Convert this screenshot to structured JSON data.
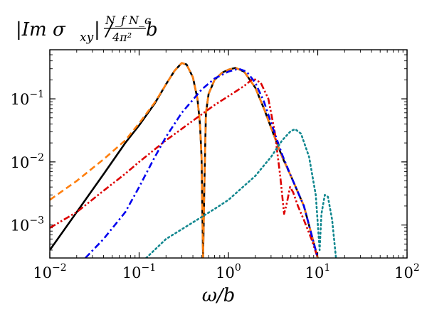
{
  "chart_data": {
    "type": "line",
    "title": "",
    "ylabel": {
      "prefix": "|Im σ",
      "subscript": "xy",
      "middle": "| / ",
      "frac_num": "N_f N_c",
      "frac_den": "4π²",
      "suffix": " b"
    },
    "xlabel": "ω/b",
    "x_scale": "log",
    "y_scale": "log",
    "xlim": [
      0.01,
      100
    ],
    "ylim": [
      0.0003,
      0.6
    ],
    "x_ticks": [
      {
        "value": 0.01,
        "base": "10",
        "exp": "−2"
      },
      {
        "value": 0.1,
        "base": "10",
        "exp": "−1"
      },
      {
        "value": 1,
        "base": "10",
        "exp": "0"
      },
      {
        "value": 10,
        "base": "10",
        "exp": "1"
      },
      {
        "value": 100,
        "base": "10",
        "exp": "2"
      }
    ],
    "y_ticks": [
      {
        "value": 0.001,
        "base": "10",
        "exp": "−3"
      },
      {
        "value": 0.01,
        "base": "10",
        "exp": "−2"
      },
      {
        "value": 0.1,
        "base": "10",
        "exp": "−1"
      }
    ],
    "series": [
      {
        "color": "#000000",
        "dash": "solid",
        "points": [
          [
            0.01,
            0.0004
          ],
          [
            0.02,
            0.0016
          ],
          [
            0.04,
            0.0064
          ],
          [
            0.07,
            0.02
          ],
          [
            0.1,
            0.038
          ],
          [
            0.15,
            0.085
          ],
          [
            0.2,
            0.17
          ],
          [
            0.25,
            0.28
          ],
          [
            0.3,
            0.37
          ],
          [
            0.34,
            0.35
          ],
          [
            0.4,
            0.22
          ],
          [
            0.45,
            0.1
          ],
          [
            0.48,
            0.04
          ],
          [
            0.5,
            0.012
          ],
          [
            0.52,
            0.0003
          ],
          [
            0.54,
            0.006
          ],
          [
            0.56,
            0.06
          ],
          [
            0.6,
            0.12
          ],
          [
            0.7,
            0.2
          ],
          [
            0.85,
            0.26
          ],
          [
            1.0,
            0.29
          ],
          [
            1.2,
            0.31
          ],
          [
            1.5,
            0.27
          ],
          [
            2.0,
            0.15
          ],
          [
            2.5,
            0.07
          ],
          [
            3.0,
            0.035
          ],
          [
            4.0,
            0.012
          ],
          [
            5.0,
            0.006
          ],
          [
            7.0,
            0.002
          ],
          [
            10.0,
            0.0003
          ]
        ]
      },
      {
        "color": "#ff7f0e",
        "dash": "dashed",
        "points": [
          [
            0.01,
            0.0025
          ],
          [
            0.02,
            0.005
          ],
          [
            0.04,
            0.011
          ],
          [
            0.07,
            0.022
          ],
          [
            0.1,
            0.041
          ],
          [
            0.15,
            0.088
          ],
          [
            0.2,
            0.17
          ],
          [
            0.25,
            0.28
          ],
          [
            0.3,
            0.37
          ],
          [
            0.34,
            0.35
          ],
          [
            0.4,
            0.22
          ],
          [
            0.45,
            0.1
          ],
          [
            0.48,
            0.04
          ],
          [
            0.5,
            0.012
          ],
          [
            0.52,
            0.0003
          ],
          [
            0.54,
            0.006
          ],
          [
            0.56,
            0.06
          ],
          [
            0.6,
            0.12
          ],
          [
            0.7,
            0.2
          ],
          [
            0.85,
            0.26
          ],
          [
            1.0,
            0.29
          ],
          [
            1.2,
            0.31
          ],
          [
            1.5,
            0.27
          ],
          [
            2.0,
            0.15
          ],
          [
            2.5,
            0.07
          ],
          [
            3.0,
            0.035
          ],
          [
            4.0,
            0.012
          ],
          [
            5.0,
            0.006
          ],
          [
            7.0,
            0.002
          ],
          [
            10.0,
            0.0003
          ]
        ]
      },
      {
        "color": "#dd0000",
        "dash": "dash-dot-dot",
        "points": [
          [
            0.01,
            0.0009
          ],
          [
            0.02,
            0.0016
          ],
          [
            0.04,
            0.0035
          ],
          [
            0.07,
            0.0065
          ],
          [
            0.1,
            0.01
          ],
          [
            0.2,
            0.022
          ],
          [
            0.4,
            0.045
          ],
          [
            0.7,
            0.08
          ],
          [
            1.0,
            0.11
          ],
          [
            1.5,
            0.16
          ],
          [
            1.9,
            0.21
          ],
          [
            2.3,
            0.18
          ],
          [
            2.8,
            0.1
          ],
          [
            3.3,
            0.03
          ],
          [
            3.8,
            0.006
          ],
          [
            4.2,
            0.0015
          ],
          [
            4.5,
            0.0022
          ],
          [
            4.9,
            0.004
          ],
          [
            5.3,
            0.0033
          ],
          [
            6.0,
            0.002
          ],
          [
            7.0,
            0.0012
          ],
          [
            8.5,
            0.0006
          ],
          [
            10.0,
            0.0003
          ]
        ]
      },
      {
        "color": "#0000ee",
        "dash": "dash-dot",
        "points": [
          [
            0.025,
            0.0003
          ],
          [
            0.04,
            0.0006
          ],
          [
            0.07,
            0.0016
          ],
          [
            0.1,
            0.004
          ],
          [
            0.15,
            0.012
          ],
          [
            0.2,
            0.025
          ],
          [
            0.3,
            0.06
          ],
          [
            0.5,
            0.14
          ],
          [
            0.7,
            0.21
          ],
          [
            1.0,
            0.27
          ],
          [
            1.3,
            0.3
          ],
          [
            1.6,
            0.27
          ],
          [
            2.0,
            0.18
          ],
          [
            2.5,
            0.09
          ],
          [
            3.0,
            0.042
          ],
          [
            4.0,
            0.013
          ],
          [
            5.0,
            0.006
          ],
          [
            7.0,
            0.002
          ],
          [
            10.0,
            0.0003
          ]
        ]
      },
      {
        "color": "#11878f",
        "dash": "dotted",
        "points": [
          [
            0.12,
            0.0003
          ],
          [
            0.2,
            0.0006
          ],
          [
            0.4,
            0.0011
          ],
          [
            0.7,
            0.0018
          ],
          [
            1.0,
            0.0025
          ],
          [
            2.0,
            0.006
          ],
          [
            3.0,
            0.012
          ],
          [
            4.0,
            0.022
          ],
          [
            5.0,
            0.031
          ],
          [
            5.6,
            0.033
          ],
          [
            6.5,
            0.028
          ],
          [
            8.0,
            0.012
          ],
          [
            9.5,
            0.003
          ],
          [
            10.5,
            0.0004
          ],
          [
            11.0,
            0.0015
          ],
          [
            12.0,
            0.003
          ],
          [
            13.0,
            0.0028
          ],
          [
            14.5,
            0.0012
          ],
          [
            16.0,
            0.0003
          ]
        ]
      }
    ]
  }
}
